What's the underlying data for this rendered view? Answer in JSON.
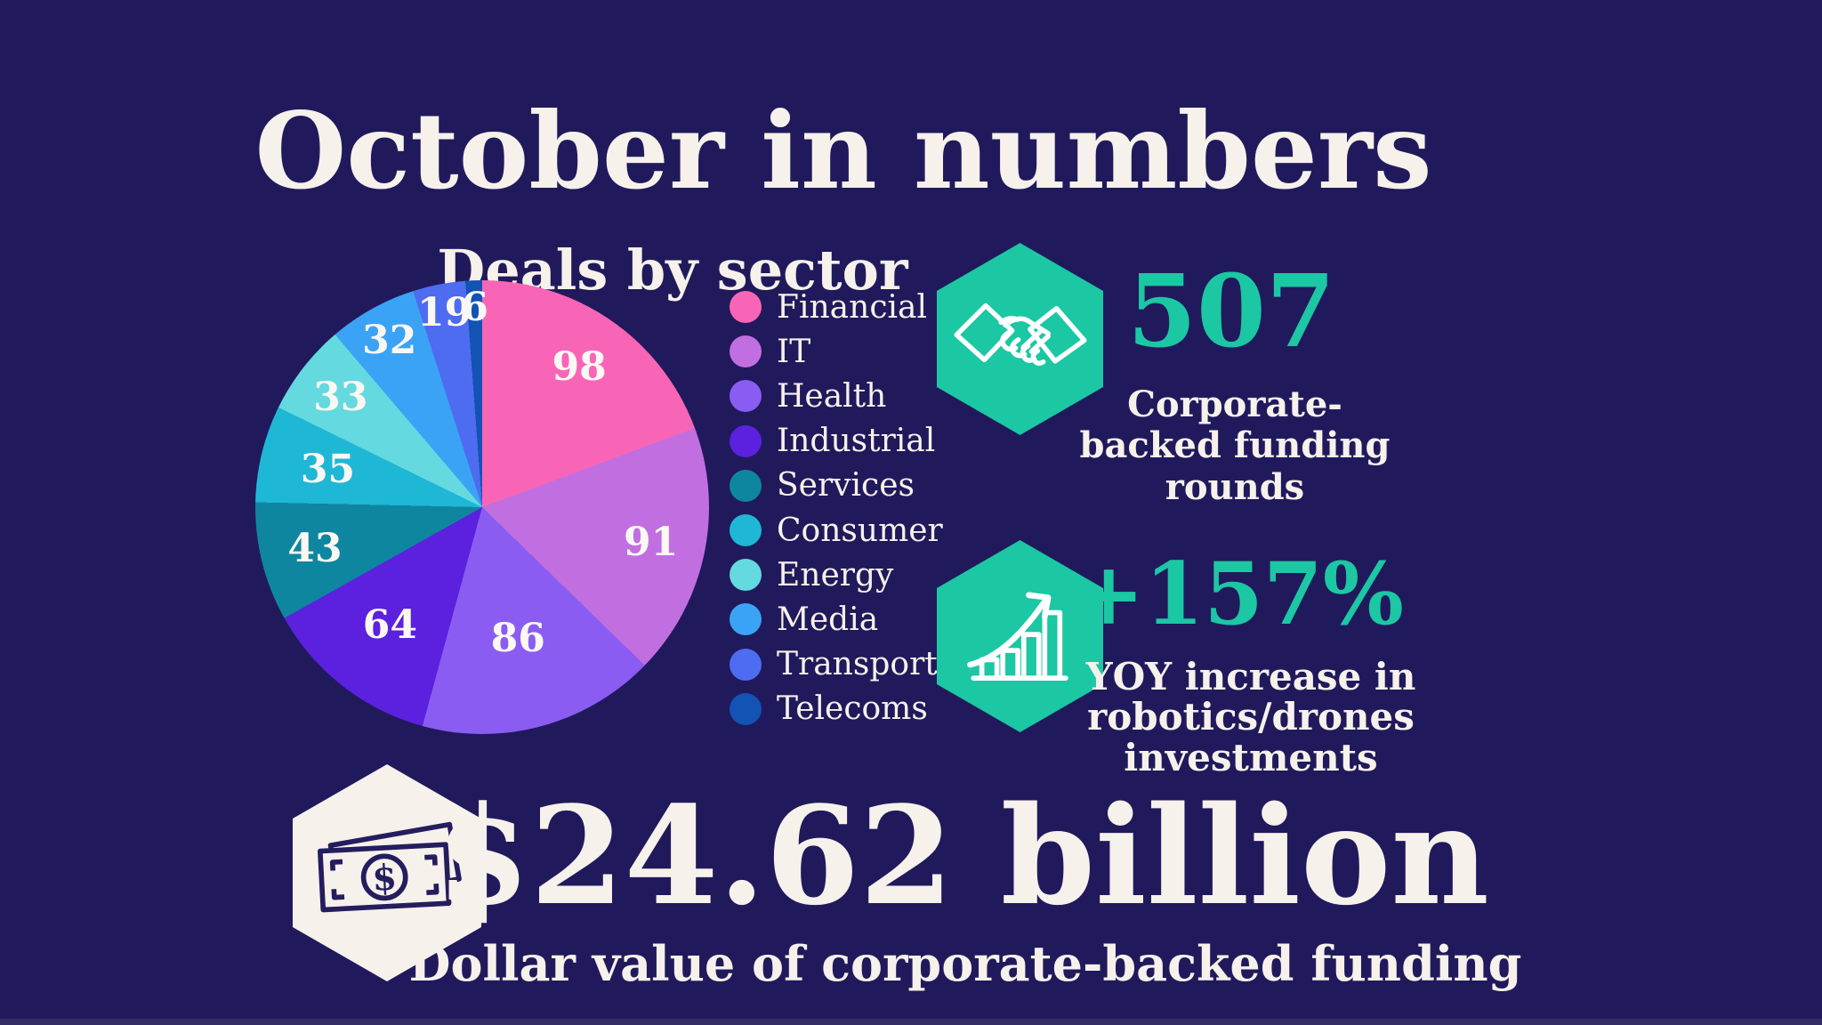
{
  "title": "October in numbers",
  "chart_data": {
    "type": "pie",
    "title": "Deals by sector",
    "categories": [
      "Financial",
      "IT",
      "Health",
      "Industrial",
      "Services",
      "Consumer",
      "Energy",
      "Media",
      "Transport",
      "Telecoms"
    ],
    "values": [
      98,
      91,
      86,
      64,
      43,
      35,
      33,
      32,
      19,
      6
    ],
    "colors": [
      "#F965B6",
      "#C16FE0",
      "#8A5CF2",
      "#5B21DE",
      "#0F86A0",
      "#1FB7D6",
      "#64D9DF",
      "#3BA3F6",
      "#4E6CF0",
      "#1253B4"
    ],
    "total": 507,
    "start_angle_deg": 0,
    "direction": "clockwise",
    "legend_position": "right",
    "label_color": "#FBF8F4"
  },
  "stats": {
    "funding_rounds": {
      "value": "507",
      "label": "Corporate-backed funding rounds",
      "icon": "handshake-icon",
      "accent_color": "#1CC7A3"
    },
    "robotics_increase": {
      "value": "+157%",
      "label": "YOY increase in robotics/drones investments",
      "icon": "growth-chart-icon",
      "accent_color": "#1CC7A3"
    }
  },
  "headline_stat": {
    "value": "$24.62 billion",
    "label": "Dollar value of corporate-backed funding",
    "icon": "money-icon"
  },
  "colors": {
    "background": "#201A5C",
    "text_cream": "#F6F1EB",
    "accent_green": "#1CC7A3",
    "hexagon_green": "#1CC7A3",
    "hexagon_cream": "#F6F1EB",
    "icon_navy": "#241D5E"
  }
}
